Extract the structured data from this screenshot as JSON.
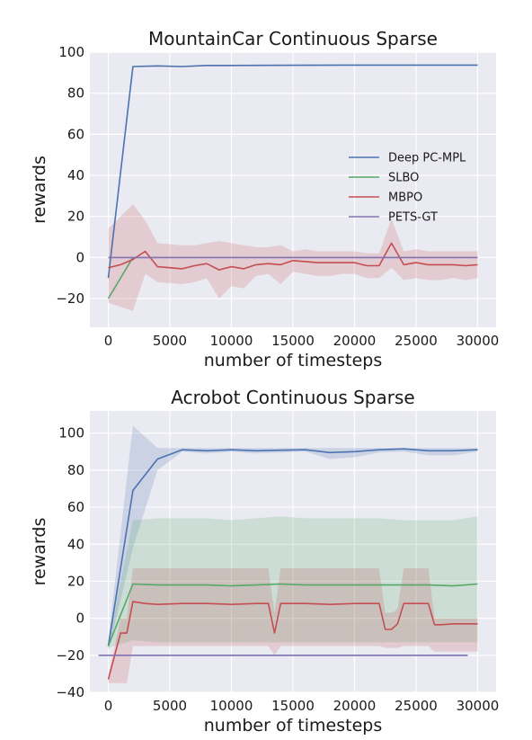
{
  "chart_data": [
    {
      "type": "line",
      "title": "MountainCar Continuous Sparse",
      "xlabel": "number of timesteps",
      "ylabel": "rewards",
      "xlim": [
        -1500,
        31500
      ],
      "ylim": [
        -34,
        100
      ],
      "xticks": [
        0,
        5000,
        10000,
        15000,
        20000,
        25000,
        30000
      ],
      "yticks": [
        -20,
        0,
        20,
        40,
        60,
        80,
        100
      ],
      "xtick_labels": [
        "0",
        "5000",
        "10000",
        "15000",
        "20000",
        "25000",
        "30000"
      ],
      "ytick_labels": [
        "−20",
        "0",
        "20",
        "40",
        "60",
        "80",
        "100"
      ],
      "grid": true,
      "legend_position": "center-right",
      "series": [
        {
          "name": "Deep PC-MPL",
          "color": "#4c72b0",
          "x": [
            0,
            2000,
            4000,
            6000,
            8000,
            10000,
            15000,
            20000,
            25000,
            30000
          ],
          "y": [
            -10,
            93,
            93.3,
            93,
            93.5,
            93.5,
            93.6,
            93.7,
            93.7,
            93.7
          ]
        },
        {
          "name": "SLBO",
          "color": "#55a868",
          "x": [
            0,
            2000
          ],
          "y": [
            -20,
            0
          ]
        },
        {
          "name": "MBPO",
          "color": "#c44e52",
          "x": [
            0,
            1000,
            2000,
            3000,
            4000,
            6000,
            7000,
            8000,
            9000,
            10000,
            11000,
            12000,
            13000,
            14000,
            15000,
            16000,
            17000,
            18000,
            19000,
            20000,
            21000,
            22000,
            23000,
            24000,
            25000,
            26000,
            27000,
            28000,
            29000,
            30000
          ],
          "y": [
            -5,
            -3.5,
            -1,
            3,
            -4.5,
            -5.5,
            -4,
            -3,
            -6,
            -4.5,
            -5.5,
            -3.5,
            -3,
            -3.5,
            -1.5,
            -2,
            -2.5,
            -2.5,
            -2.5,
            -2.5,
            -4,
            -4,
            7,
            -3.5,
            -2.5,
            -3.5,
            -3.5,
            -3.5,
            -4,
            -3.5
          ],
          "y_low": [
            -22,
            -24,
            -26,
            -8,
            -12,
            -13,
            -12,
            -10,
            -20,
            -14,
            -15,
            -9,
            -8,
            -13,
            -7,
            -8,
            -9,
            -9,
            -8,
            -8,
            -10,
            -10,
            -5,
            -11,
            -10,
            -11,
            -11,
            -10,
            -11,
            -10
          ],
          "y_high": [
            14,
            20,
            26,
            18,
            7,
            6,
            6,
            7,
            8,
            7,
            6,
            5,
            5,
            6,
            3,
            4,
            3,
            3,
            3,
            3,
            2,
            2,
            19,
            3,
            4,
            3,
            3,
            3,
            3,
            3
          ]
        },
        {
          "name": "PETS-GT",
          "color": "#8172b2",
          "x": [
            0,
            30000
          ],
          "y": [
            0,
            0
          ]
        }
      ]
    },
    {
      "type": "line",
      "title": "Acrobot Continuous Sparse",
      "xlabel": "number of timesteps",
      "ylabel": "rewards",
      "xlim": [
        -1500,
        31500
      ],
      "ylim": [
        -40,
        112
      ],
      "xticks": [
        0,
        5000,
        10000,
        15000,
        20000,
        25000,
        30000
      ],
      "yticks": [
        -40,
        -20,
        0,
        20,
        40,
        60,
        80,
        100
      ],
      "xtick_labels": [
        "0",
        "5000",
        "10000",
        "15000",
        "20000",
        "25000",
        "30000"
      ],
      "ytick_labels": [
        "−40",
        "−20",
        "0",
        "20",
        "40",
        "60",
        "80",
        "100"
      ],
      "grid": true,
      "series": [
        {
          "color": "#4c72b0",
          "x": [
            0,
            2000,
            4000,
            6000,
            8000,
            10000,
            12000,
            14000,
            16000,
            18000,
            20000,
            22000,
            24000,
            26000,
            28000,
            30000
          ],
          "y": [
            -15,
            69,
            86,
            91,
            90.5,
            91,
            90.5,
            90.8,
            91,
            89.5,
            90,
            91,
            91.5,
            90.5,
            90.5,
            91
          ],
          "y_low": [
            -18,
            38,
            80,
            90,
            89,
            90,
            89,
            89.5,
            90,
            86,
            87,
            89.5,
            90,
            88,
            88,
            90
          ],
          "y_high": [
            -12,
            104,
            92,
            92,
            92,
            92,
            92,
            92,
            92,
            92,
            92,
            92,
            92,
            92,
            92,
            92
          ]
        },
        {
          "color": "#55a868",
          "x": [
            0,
            2000,
            4000,
            6000,
            8000,
            10000,
            12000,
            14000,
            16000,
            18000,
            20000,
            22000,
            24000,
            26000,
            28000,
            30000
          ],
          "y": [
            -15,
            18.5,
            18,
            18,
            18,
            17.5,
            18,
            18.5,
            18,
            18,
            18,
            18,
            18,
            18,
            17.5,
            18.5
          ],
          "y_low": [
            -16,
            -12,
            -13,
            -13,
            -13,
            -13,
            -13,
            -13,
            -13,
            -13,
            -13,
            -13,
            -13,
            -13,
            -13,
            -13
          ],
          "y_high": [
            -14,
            53,
            54,
            54,
            54,
            53,
            54,
            55,
            54,
            54,
            54,
            54,
            53,
            53,
            53,
            55
          ]
        },
        {
          "color": "#c44e52",
          "x": [
            0,
            1000,
            1500,
            2000,
            3000,
            4000,
            6000,
            8000,
            10000,
            12000,
            13000,
            13500,
            14000,
            16000,
            18000,
            20000,
            22000,
            22500,
            23000,
            23500,
            24000,
            25000,
            26000,
            26500,
            27000,
            28000,
            30000
          ],
          "y": [
            -33,
            -8,
            -8,
            9,
            8,
            7.5,
            8,
            8,
            7.5,
            8,
            8,
            -8,
            8,
            8,
            7.5,
            8,
            8,
            -6,
            -6,
            -3,
            8,
            8,
            8,
            -3.5,
            -3.5,
            -3,
            -3
          ],
          "y_low": [
            -35,
            -35,
            -35,
            -15,
            -15,
            -15,
            -15,
            -15,
            -15,
            -15,
            -15,
            -20,
            -15,
            -15,
            -15,
            -15,
            -15,
            -16,
            -16,
            -16,
            -15,
            -15,
            -15,
            -18,
            -18,
            -18,
            -18
          ],
          "y_high": [
            -31,
            0,
            0,
            27,
            27,
            27,
            27,
            27,
            27,
            27,
            27,
            3,
            27,
            27,
            27,
            27,
            27,
            3,
            3,
            5,
            27,
            27,
            27,
            0,
            0,
            0,
            0
          ]
        },
        {
          "color": "#8172b2",
          "x": [
            -800,
            29200
          ],
          "y": [
            -20,
            -20
          ]
        }
      ]
    }
  ]
}
